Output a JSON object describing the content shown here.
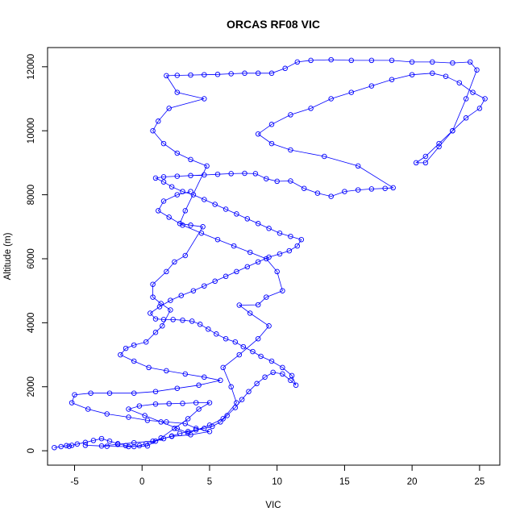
{
  "chart_data": {
    "type": "scatter",
    "title": "ORCAS RF08 VIC",
    "xlabel": "VIC",
    "ylabel": "Altitude (m)",
    "xlim": [
      -7,
      26.5
    ],
    "ylim": [
      -450,
      12600
    ],
    "x_ticks": [
      -5,
      0,
      5,
      10,
      15,
      20,
      25
    ],
    "y_ticks": [
      0,
      2000,
      4000,
      6000,
      8000,
      10000,
      12000
    ],
    "x_tick_labels": [
      "-5",
      "0",
      "5",
      "10",
      "15",
      "20",
      "25"
    ],
    "y_tick_labels": [
      "0",
      "2000",
      "4000",
      "6000",
      "8000",
      "10000",
      "12000"
    ],
    "marker": "open-circle",
    "connected": true,
    "color": "#0000ff",
    "series": [
      {
        "points": [
          [
            -6.5,
            100
          ],
          [
            -6.0,
            130
          ],
          [
            -5.6,
            160
          ],
          [
            -5.4,
            140
          ],
          [
            -5.2,
            170
          ],
          [
            -4.8,
            210
          ],
          [
            -4.2,
            260
          ],
          [
            -3.6,
            320
          ],
          [
            -3.0,
            380
          ],
          [
            -2.4,
            300
          ],
          [
            -1.8,
            220
          ],
          [
            -1.2,
            160
          ],
          [
            -0.6,
            130
          ],
          [
            -0.2,
            160
          ],
          [
            0.3,
            220
          ],
          [
            1.0,
            300
          ],
          [
            1.6,
            380
          ],
          [
            2.2,
            460
          ],
          [
            2.8,
            540
          ],
          [
            3.4,
            600
          ],
          [
            4.0,
            650
          ],
          [
            4.6,
            700
          ],
          [
            5.2,
            760
          ],
          [
            5.8,
            900
          ],
          [
            6.3,
            1100
          ],
          [
            6.9,
            1350
          ],
          [
            7.4,
            1600
          ],
          [
            7.9,
            1850
          ],
          [
            8.5,
            2100
          ],
          [
            9.1,
            2300
          ],
          [
            9.7,
            2450
          ],
          [
            10.4,
            2400
          ],
          [
            11.0,
            2200
          ],
          [
            11.4,
            2050
          ],
          [
            11.1,
            2350
          ],
          [
            10.4,
            2600
          ],
          [
            9.6,
            2800
          ],
          [
            8.8,
            2950
          ],
          [
            8.2,
            3100
          ],
          [
            7.5,
            3250
          ],
          [
            6.9,
            3400
          ],
          [
            6.2,
            3500
          ],
          [
            5.5,
            3650
          ],
          [
            4.9,
            3800
          ],
          [
            4.3,
            3950
          ],
          [
            3.7,
            4050
          ],
          [
            3.0,
            4080
          ],
          [
            2.3,
            4100
          ],
          [
            1.6,
            4100
          ],
          [
            1.0,
            4120
          ],
          [
            0.6,
            4300
          ],
          [
            1.3,
            4500
          ],
          [
            2.1,
            4700
          ],
          [
            2.9,
            4850
          ],
          [
            3.8,
            5000
          ],
          [
            4.6,
            5150
          ],
          [
            5.4,
            5300
          ],
          [
            6.2,
            5450
          ],
          [
            7.0,
            5600
          ],
          [
            7.8,
            5750
          ],
          [
            8.6,
            5900
          ],
          [
            9.4,
            6050
          ],
          [
            10.2,
            6150
          ],
          [
            10.9,
            6250
          ],
          [
            11.5,
            6400
          ],
          [
            11.8,
            6600
          ],
          [
            11.0,
            6700
          ],
          [
            10.2,
            6800
          ],
          [
            9.4,
            6950
          ],
          [
            8.6,
            7100
          ],
          [
            7.8,
            7250
          ],
          [
            7.0,
            7400
          ],
          [
            6.2,
            7550
          ],
          [
            5.4,
            7700
          ],
          [
            4.6,
            7850
          ],
          [
            3.8,
            8000
          ],
          [
            3.0,
            8100
          ],
          [
            2.2,
            8250
          ],
          [
            1.6,
            8400
          ],
          [
            1.0,
            8520
          ],
          [
            1.6,
            8560
          ],
          [
            2.6,
            8580
          ],
          [
            3.6,
            8600
          ],
          [
            4.6,
            8620
          ],
          [
            5.6,
            8640
          ],
          [
            6.6,
            8660
          ],
          [
            7.6,
            8670
          ],
          [
            8.4,
            8660
          ],
          [
            9.2,
            8500
          ],
          [
            10.0,
            8420
          ],
          [
            11.0,
            8430
          ],
          [
            12.0,
            8200
          ],
          [
            13.0,
            8050
          ],
          [
            14.0,
            7950
          ],
          [
            15.0,
            8100
          ],
          [
            16.0,
            8150
          ],
          [
            17.0,
            8180
          ],
          [
            18.0,
            8200
          ],
          [
            18.6,
            8220
          ],
          [
            16.0,
            8900
          ],
          [
            13.5,
            9200
          ],
          [
            11.0,
            9400
          ],
          [
            9.6,
            9600
          ],
          [
            8.6,
            9900
          ],
          [
            9.6,
            10200
          ],
          [
            11.0,
            10500
          ],
          [
            12.5,
            10700
          ],
          [
            14.0,
            11000
          ],
          [
            15.5,
            11200
          ],
          [
            17.0,
            11400
          ],
          [
            18.5,
            11600
          ],
          [
            20.0,
            11750
          ],
          [
            21.5,
            11800
          ],
          [
            22.5,
            11700
          ],
          [
            23.5,
            11500
          ],
          [
            24.5,
            11200
          ],
          [
            25.4,
            11000
          ],
          [
            25.0,
            10700
          ],
          [
            24.0,
            10400
          ],
          [
            23.0,
            10000
          ],
          [
            22.0,
            9600
          ],
          [
            21.0,
            9200
          ],
          [
            20.3,
            9000
          ],
          [
            21.0,
            9000
          ],
          [
            22.0,
            9500
          ],
          [
            23.0,
            10000
          ],
          [
            24.0,
            11000
          ],
          [
            24.8,
            11900
          ],
          [
            24.3,
            12150
          ],
          [
            23.0,
            12120
          ],
          [
            21.5,
            12150
          ],
          [
            20.0,
            12150
          ],
          [
            18.5,
            12200
          ],
          [
            17.0,
            12200
          ],
          [
            15.5,
            12200
          ],
          [
            14.0,
            12220
          ],
          [
            12.5,
            12200
          ],
          [
            11.5,
            12150
          ],
          [
            10.6,
            11950
          ],
          [
            9.6,
            11800
          ],
          [
            8.6,
            11800
          ],
          [
            7.6,
            11800
          ],
          [
            6.6,
            11780
          ],
          [
            5.6,
            11760
          ],
          [
            4.6,
            11750
          ],
          [
            3.6,
            11740
          ],
          [
            2.6,
            11730
          ],
          [
            1.8,
            11720
          ],
          [
            2.6,
            11200
          ],
          [
            4.6,
            11000
          ],
          [
            2.0,
            10700
          ],
          [
            1.2,
            10300
          ],
          [
            0.8,
            10000
          ],
          [
            1.6,
            9600
          ],
          [
            2.6,
            9300
          ],
          [
            3.6,
            9100
          ],
          [
            4.8,
            8900
          ],
          [
            3.2,
            7500
          ],
          [
            2.8,
            7100
          ],
          [
            3.6,
            7050
          ],
          [
            4.5,
            7000
          ],
          [
            3.2,
            6100
          ],
          [
            2.4,
            5900
          ],
          [
            1.8,
            5600
          ],
          [
            0.8,
            5200
          ],
          [
            0.8,
            4800
          ],
          [
            1.4,
            4600
          ],
          [
            2.1,
            4400
          ],
          [
            1.5,
            3900
          ],
          [
            1.0,
            3700
          ],
          [
            0.3,
            3400
          ],
          [
            -0.6,
            3300
          ],
          [
            -1.2,
            3200
          ],
          [
            -1.6,
            3000
          ],
          [
            -0.6,
            2800
          ],
          [
            0.5,
            2600
          ],
          [
            1.8,
            2500
          ],
          [
            3.2,
            2400
          ],
          [
            4.6,
            2300
          ],
          [
            5.8,
            2200
          ],
          [
            4.2,
            2050
          ],
          [
            2.6,
            1950
          ],
          [
            1.0,
            1850
          ],
          [
            -0.6,
            1800
          ],
          [
            -2.4,
            1800
          ],
          [
            -3.8,
            1800
          ],
          [
            -5.0,
            1750
          ],
          [
            -5.2,
            1500
          ],
          [
            -4.0,
            1300
          ],
          [
            -2.6,
            1150
          ],
          [
            -1.0,
            1050
          ],
          [
            0.4,
            950
          ],
          [
            1.8,
            900
          ],
          [
            3.2,
            850
          ],
          [
            4.0,
            700
          ],
          [
            5.0,
            600
          ],
          [
            3.6,
            500
          ],
          [
            2.2,
            450
          ],
          [
            0.8,
            300
          ],
          [
            -0.6,
            250
          ],
          [
            -1.8,
            200
          ],
          [
            -3.0,
            150
          ],
          [
            -4.2,
            170
          ],
          [
            -2.6,
            140
          ],
          [
            -1.0,
            130
          ],
          [
            0.4,
            150
          ],
          [
            1.4,
            400
          ],
          [
            2.4,
            700
          ],
          [
            3.4,
            1000
          ],
          [
            4.2,
            1300
          ],
          [
            5.0,
            1500
          ],
          [
            4.0,
            1500
          ],
          [
            3.0,
            1480
          ],
          [
            2.0,
            1470
          ],
          [
            1.0,
            1460
          ],
          [
            -0.2,
            1400
          ],
          [
            -1.0,
            1300
          ],
          [
            0.2,
            1100
          ],
          [
            1.4,
            900
          ],
          [
            2.6,
            700
          ],
          [
            3.4,
            550
          ],
          [
            5.0,
            800
          ],
          [
            6.0,
            1000
          ],
          [
            7.0,
            1500
          ],
          [
            6.6,
            2000
          ],
          [
            6.0,
            2600
          ],
          [
            7.2,
            3000
          ],
          [
            8.6,
            3500
          ],
          [
            9.4,
            3900
          ],
          [
            8.0,
            4300
          ],
          [
            7.2,
            4550
          ],
          [
            8.6,
            4560
          ],
          [
            9.2,
            4800
          ],
          [
            10.4,
            5000
          ],
          [
            10.0,
            5600
          ],
          [
            9.2,
            6000
          ],
          [
            8.0,
            6200
          ],
          [
            6.8,
            6400
          ],
          [
            5.6,
            6600
          ],
          [
            4.4,
            6800
          ],
          [
            3.0,
            7050
          ],
          [
            2.0,
            7300
          ],
          [
            1.2,
            7500
          ],
          [
            1.6,
            7800
          ],
          [
            2.6,
            8000
          ],
          [
            3.6,
            8100
          ]
        ]
      }
    ]
  }
}
